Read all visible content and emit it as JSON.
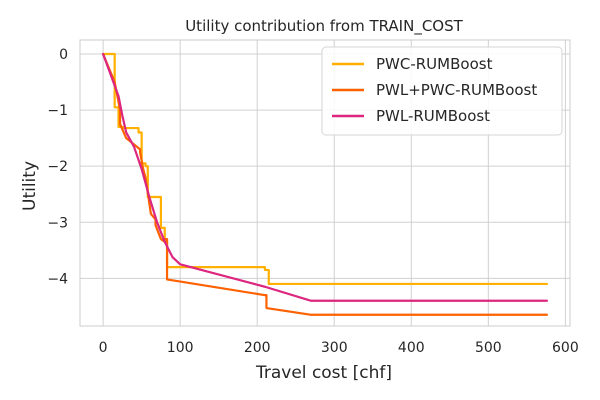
{
  "chart_data": {
    "type": "line",
    "title": "Utility contribution from TRAIN_COST",
    "xlabel": "Travel cost [chf]",
    "ylabel": "Utility",
    "xlim": [
      -30,
      606
    ],
    "ylim": [
      -4.85,
      0.25
    ],
    "xticks": [
      0,
      100,
      200,
      300,
      400,
      500,
      600
    ],
    "yticks": [
      0,
      -1,
      -2,
      -3,
      -4
    ],
    "xtick_labels": [
      "0",
      "100",
      "200",
      "300",
      "400",
      "500",
      "600"
    ],
    "ytick_labels": [
      "0",
      "−1",
      "−2",
      "−3",
      "−4"
    ],
    "grid": true,
    "legend_position": "top-right",
    "series": [
      {
        "name": "PWC-RUMBoost",
        "color": "#ffb000",
        "x": [
          0,
          15,
          15,
          20,
          20,
          26,
          26,
          46,
          46,
          50,
          50,
          55,
          55,
          58,
          58,
          75,
          75,
          80,
          80,
          83,
          83,
          210,
          210,
          215,
          215,
          576
        ],
        "y": [
          0,
          0,
          -0.95,
          -0.95,
          -1.3,
          -1.3,
          -1.32,
          -1.32,
          -1.4,
          -1.4,
          -1.95,
          -1.95,
          -2.0,
          -2.0,
          -2.55,
          -2.55,
          -3.1,
          -3.1,
          -3.35,
          -3.35,
          -3.8,
          -3.8,
          -3.85,
          -3.85,
          -4.1,
          -4.1
        ]
      },
      {
        "name": "PWL+PWC-RUMBoost",
        "color": "#fe6100",
        "x": [
          0,
          15,
          22,
          22,
          30,
          48,
          48,
          52,
          55,
          62,
          68,
          68,
          75,
          80,
          80,
          83,
          83,
          210,
          212,
          212,
          270,
          576
        ],
        "y": [
          0,
          -0.5,
          -1.0,
          -1.25,
          -1.5,
          -1.7,
          -1.75,
          -2.05,
          -2.2,
          -2.85,
          -2.95,
          -3.05,
          -3.3,
          -3.35,
          -3.3,
          -3.3,
          -4.02,
          -4.3,
          -4.3,
          -4.53,
          -4.65,
          -4.65
        ]
      },
      {
        "name": "PWL-RUMBoost",
        "color": "#dc267f",
        "x": [
          0,
          20,
          25,
          30,
          40,
          50,
          60,
          70,
          80,
          90,
          100,
          210,
          270,
          576
        ],
        "y": [
          0,
          -0.75,
          -1.1,
          -1.4,
          -1.65,
          -2.05,
          -2.55,
          -3.0,
          -3.35,
          -3.62,
          -3.75,
          -4.15,
          -4.4,
          -4.4
        ]
      }
    ]
  }
}
